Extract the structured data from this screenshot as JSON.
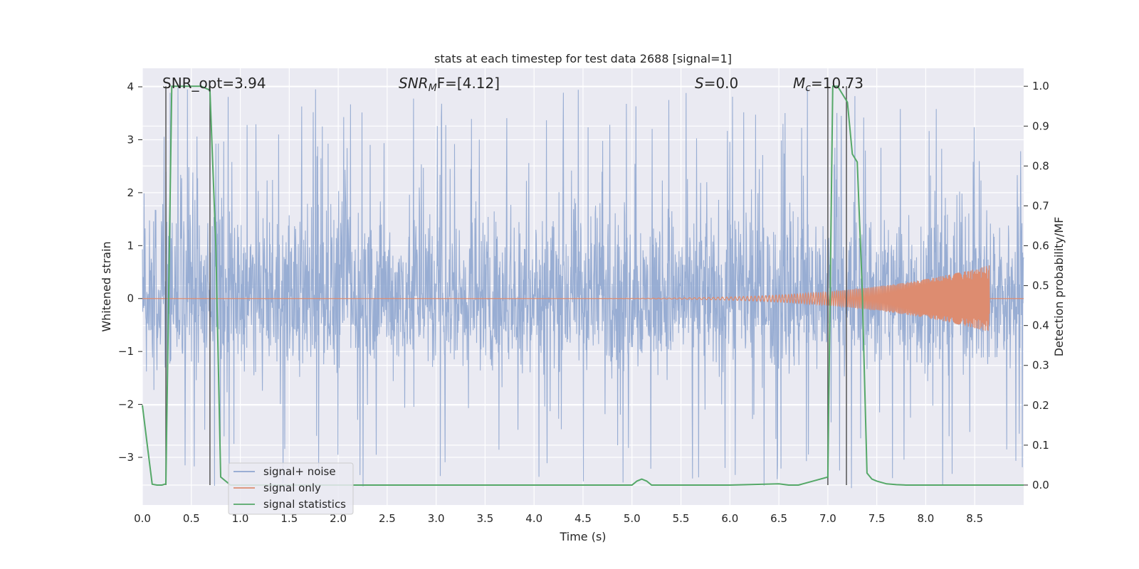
{
  "chart_data": {
    "type": "line",
    "title": "stats at each timestep for test data 2688 [signal=1]",
    "xlabel": "Time (s)",
    "ylabel_left": "Whitened strain",
    "ylabel_right": "Detection probability/MF",
    "xlim": [
      0.0,
      9.0
    ],
    "ylim_left": [
      -3.9,
      4.35
    ],
    "ylim_right": [
      -0.05,
      1.045
    ],
    "x_ticks": [
      "0.0",
      "0.5",
      "1.0",
      "1.5",
      "2.0",
      "2.5",
      "3.0",
      "3.5",
      "4.0",
      "4.5",
      "5.0",
      "5.5",
      "6.0",
      "6.5",
      "7.0",
      "7.5",
      "8.0",
      "8.5"
    ],
    "x_tick_values": [
      0.0,
      0.5,
      1.0,
      1.5,
      2.0,
      2.5,
      3.0,
      3.5,
      4.0,
      4.5,
      5.0,
      5.5,
      6.0,
      6.5,
      7.0,
      7.5,
      8.0,
      8.5
    ],
    "y_ticks_left": [
      "−3",
      "−2",
      "−1",
      "0",
      "1",
      "2",
      "3",
      "4"
    ],
    "y_tick_values_left": [
      -3,
      -2,
      -1,
      0,
      1,
      2,
      3,
      4
    ],
    "y_ticks_right": [
      "0.0",
      "0.1",
      "0.2",
      "0.3",
      "0.4",
      "0.5",
      "0.6",
      "0.7",
      "0.8",
      "0.9",
      "1.0"
    ],
    "y_tick_values_right": [
      0.0,
      0.1,
      0.2,
      0.3,
      0.4,
      0.5,
      0.6,
      0.7,
      0.8,
      0.9,
      1.0
    ],
    "grid": true,
    "legend_position": "lower-left",
    "annotations": {
      "snr_opt": "SNR_opt=3.94",
      "snr_mf_base": "SNR",
      "snr_mf_sub": "M",
      "snr_mf_rest": "F=[4.12]",
      "s_var": "S",
      "s_rest": "=0.0",
      "mc_var": "M",
      "mc_sub": "c",
      "mc_rest": "=10.73"
    },
    "vertical_markers_s": [
      0.24,
      0.69,
      7.0,
      7.19
    ],
    "series": [
      {
        "name": "signal+ noise",
        "color": "#8fa6cf",
        "axis": "left",
        "kind": "noise",
        "amplitude_band": [
          -1.3,
          1.75
        ],
        "peak_range": [
          -3.6,
          4.0
        ]
      },
      {
        "name": "signal only",
        "color": "#dd8c70",
        "axis": "left",
        "kind": "chirp",
        "start_s": 4.6,
        "end_s": 8.65,
        "peak_amplitude": 0.6
      },
      {
        "name": "signal statistics",
        "color": "#55a868",
        "axis": "right",
        "x": [
          0.0,
          0.05,
          0.1,
          0.15,
          0.2,
          0.24,
          0.3,
          0.35,
          0.4,
          0.5,
          0.6,
          0.69,
          0.75,
          0.8,
          0.9,
          1.0,
          2.0,
          3.0,
          4.0,
          5.0,
          5.05,
          5.1,
          5.15,
          5.2,
          5.3,
          6.0,
          6.5,
          6.6,
          6.7,
          7.0,
          7.05,
          7.1,
          7.2,
          7.25,
          7.3,
          7.35,
          7.4,
          7.45,
          7.5,
          7.6,
          7.7,
          7.8,
          8.0,
          8.5,
          9.0
        ],
        "y": [
          0.2,
          0.1,
          0.002,
          0.0,
          0.0,
          0.003,
          1.0,
          1.0,
          1.0,
          1.0,
          1.0,
          0.99,
          0.6,
          0.02,
          0.0,
          0.0,
          0.0,
          0.0,
          0.0,
          0.0,
          0.01,
          0.015,
          0.01,
          0.0,
          0.0,
          0.0,
          0.003,
          0.0,
          0.0,
          0.02,
          1.0,
          1.0,
          0.96,
          0.83,
          0.81,
          0.5,
          0.03,
          0.015,
          0.01,
          0.003,
          0.001,
          0.0,
          0.0,
          0.0,
          0.0
        ]
      }
    ]
  }
}
